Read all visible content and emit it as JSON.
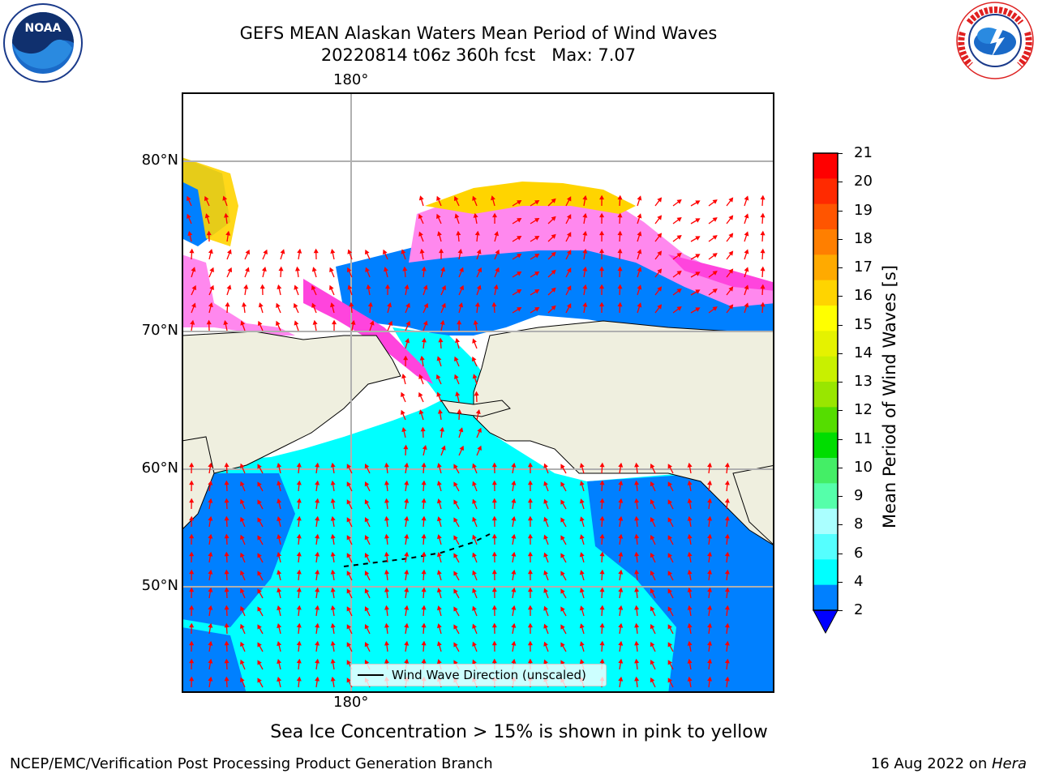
{
  "header": {
    "title_line1": "GEFS MEAN Alaskan Waters Mean Period of Wind Waves",
    "title_line2": "20220814 t06z 360h fcst   Max: 7.07"
  },
  "logos": {
    "left": {
      "text": "NOAA",
      "icon": "noaa-logo-icon"
    },
    "right": {
      "text": "NATIONAL WEATHER SERVICE",
      "icon": "nws-logo-icon"
    }
  },
  "map": {
    "lon_label_top": "180°",
    "lon_label_bottom": "180°",
    "lat_labels": [
      "80°N",
      "70°N",
      "60°N",
      "50°N"
    ],
    "legend_label": "Wind Wave Direction (unscaled)"
  },
  "colorbar": {
    "label": "Mean Period of Wind Waves [s]",
    "ticks": [
      "21",
      "20",
      "19",
      "18",
      "17",
      "16",
      "15",
      "14",
      "13",
      "12",
      "11",
      "10",
      "9",
      "8",
      "6",
      "4",
      "2"
    ],
    "colors": [
      "#ff0000",
      "#ff2a00",
      "#ff5500",
      "#ff7f00",
      "#ffaa00",
      "#ffd400",
      "#ffff00",
      "#e5f200",
      "#c8f000",
      "#99e600",
      "#55dd00",
      "#00dd00",
      "#44ee66",
      "#55ffaa",
      "#aaffff",
      "#55ffff",
      "#00ffff",
      "#0080ff"
    ],
    "under_color": "#0000ff"
  },
  "note": "Sea Ice Concentration > 15% is shown in pink to yellow",
  "footer": {
    "left": "NCEP/EMC/Verification Post Processing Product Generation Branch",
    "right_date": "16 Aug 2022 on ",
    "right_host": "Hera"
  }
}
